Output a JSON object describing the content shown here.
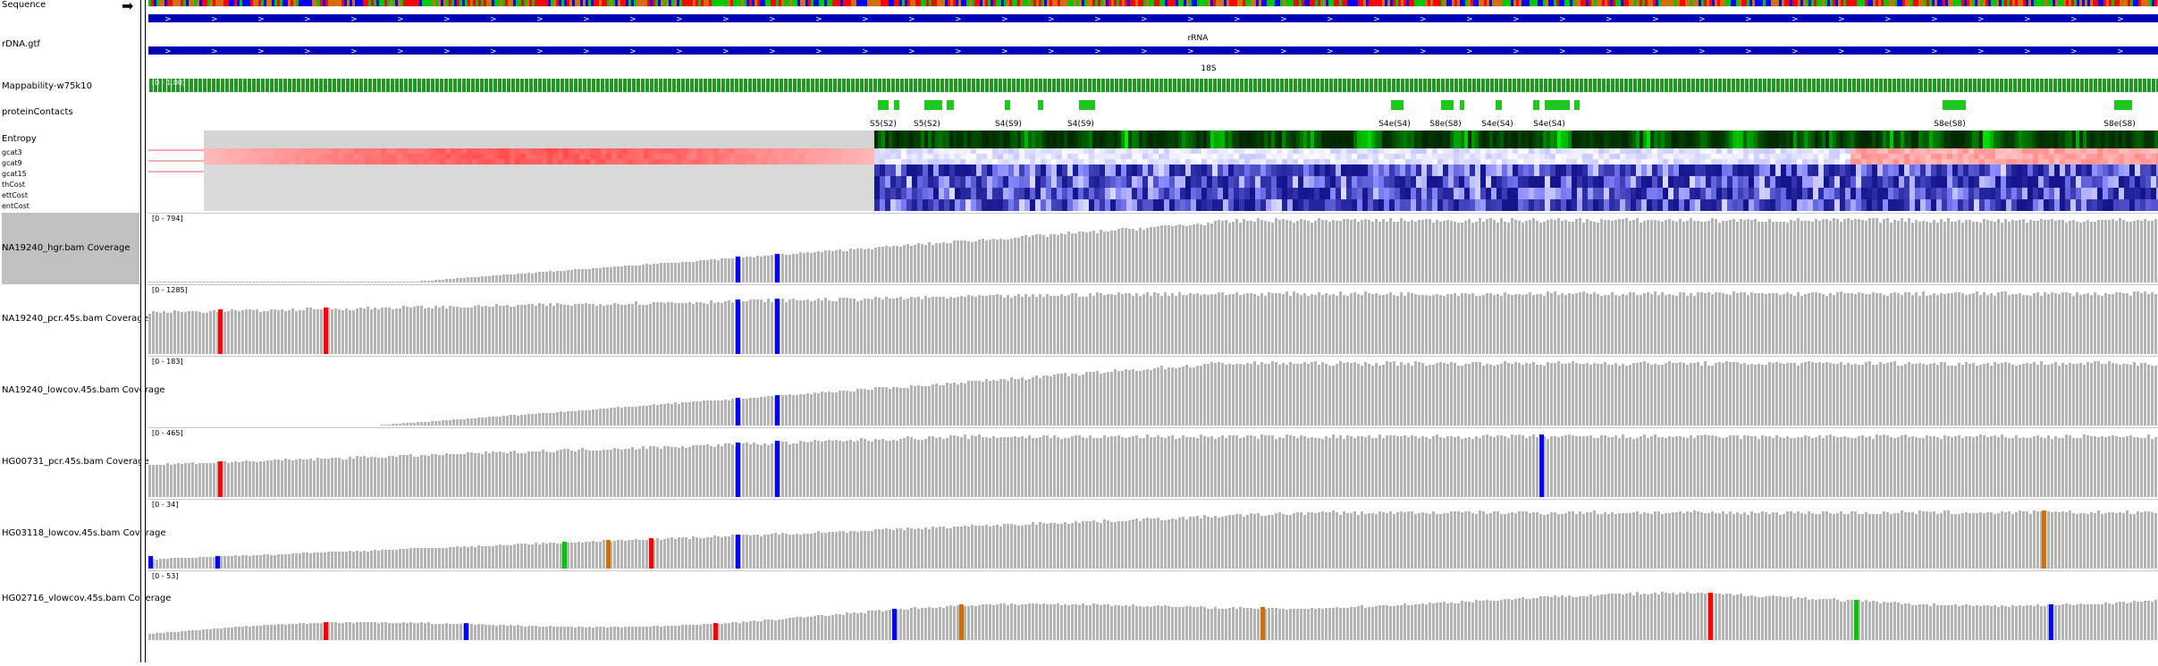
{
  "colors": {
    "feature_blue": "#0000b4",
    "mappability_green": "#1e9a1e",
    "contact_green": "#1ec81e",
    "bar_gray": "#b4b4b4",
    "base_A": "#00c800",
    "base_C": "#0000ff",
    "base_G": "#d17105",
    "base_T": "#ff0000"
  },
  "tracks": {
    "sequence": {
      "name": "Sequence",
      "strand_arrow": "➡"
    },
    "gtf": {
      "name": "rDNA.gtf",
      "feature1": "rRNA",
      "feature2": "18S"
    },
    "mappability": {
      "name": "Mappability-w75k10",
      "range": "[0 - 1.00]"
    },
    "contacts": {
      "name": "proteinContacts",
      "labels": [
        "S5(S2)",
        "S5(S2)",
        "S4(S9)",
        "S4(S9)",
        "S4e(S4)",
        "S8e(S8)",
        "S4e(S4)",
        "S4e(S4)",
        "S8e(S8)",
        "S8e(S8)"
      ]
    },
    "entropy": {
      "name": "Entropy"
    },
    "heatmap_rows": [
      "gcat3",
      "gcat9",
      "gcat15",
      "thCost",
      "ettCost",
      "entCost"
    ],
    "coverage": [
      {
        "name": "NA19240_hgr.bam Coverage",
        "range": "[0 - 794]"
      },
      {
        "name": "NA19240_pcr.45s.bam Coverage",
        "range": "[0 - 1285]"
      },
      {
        "name": "NA19240_lowcov.45s.bam Coverage",
        "range": "[0 - 183]"
      },
      {
        "name": "HG00731_pcr.45s.bam Coverage",
        "range": "[0 - 465]"
      },
      {
        "name": "HG03118_lowcov.45s.bam Coverage",
        "range": "[0 - 34]"
      },
      {
        "name": "HG02716_vlowcov.45s.bam Coverage",
        "range": "[0 - 53]"
      }
    ]
  }
}
